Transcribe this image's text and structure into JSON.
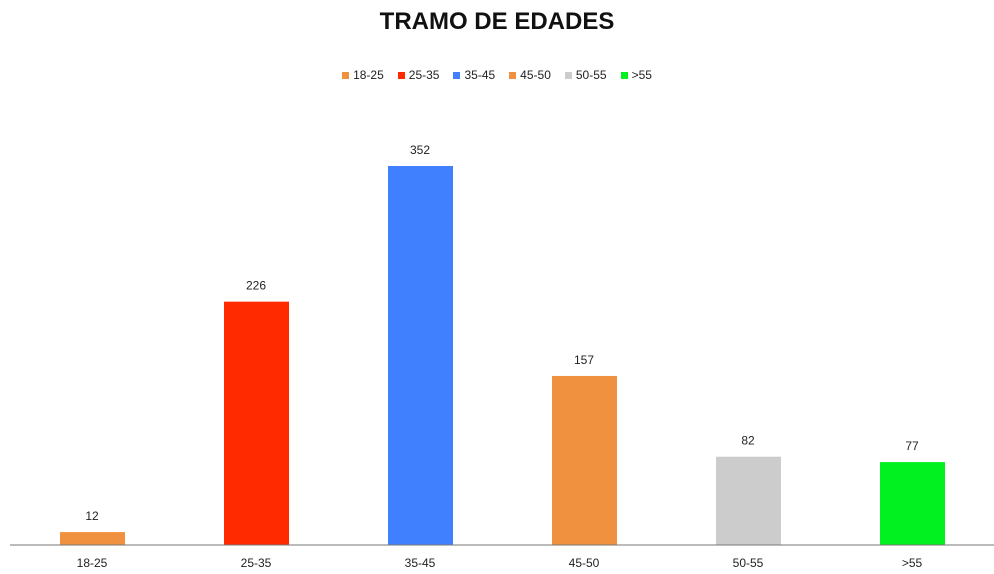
{
  "chart_data": {
    "type": "bar",
    "title": "TRAMO DE EDADES",
    "categories": [
      "18-25",
      "25-35",
      "35-45",
      "45-50",
      "50-55",
      ">55"
    ],
    "values": [
      12,
      226,
      352,
      157,
      82,
      77
    ],
    "colors": [
      "#f0913f",
      "#ff2a00",
      "#4080ff",
      "#f0913f",
      "#cccccc",
      "#00f020"
    ]
  }
}
